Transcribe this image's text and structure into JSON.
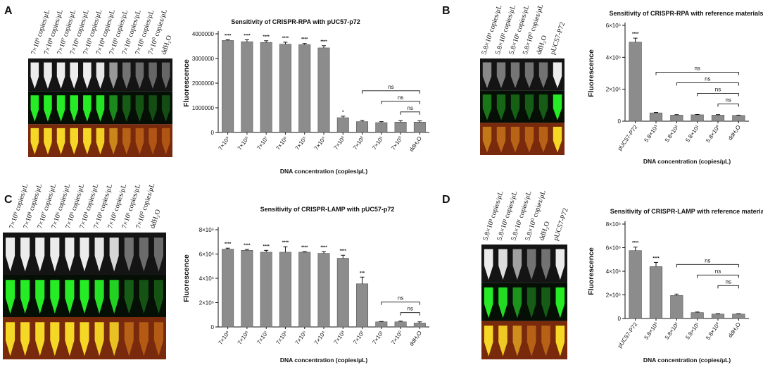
{
  "panels": [
    {
      "label": "A",
      "tube_labels": [
        "7×10⁹ copies/μL",
        "7×10⁸ copies/μL",
        "7×10⁷ copies/μL",
        "7×10⁶ copies/μL",
        "7×10⁵ copies/μL",
        "7×10⁴ copies/μL",
        "7×10³ copies/μL",
        "7×10² copies/μL",
        "7×10¹ copies/μL",
        "7×10⁰ copies/μL",
        "ddH₂O"
      ],
      "tube_brightness": [
        1,
        1,
        1,
        1,
        1,
        0.95,
        0.45,
        0.2,
        0.15,
        0.12,
        0.12
      ]
    },
    {
      "label": "B",
      "tube_labels": [
        "5.8×10³ copies/μL",
        "5.8×10² copies/μL",
        "5.8×10¹ copies/μL",
        "5.8×10⁰ copies/μL",
        "ddH₂O",
        "pUC57-P72"
      ],
      "tube_brightness": [
        0.35,
        0.25,
        0.22,
        0.2,
        0.2,
        1
      ]
    },
    {
      "label": "C",
      "tube_labels": [
        "7×10⁹ copies/μL",
        "7×10⁸ copies/μL",
        "7×10⁷ copies/μL",
        "7×10⁶ copies/μL",
        "7×10⁵ copies/μL",
        "7×10⁴ copies/μL",
        "7×10³ copies/μL",
        "7×10² copies/μL",
        "7×10¹ copies/μL",
        "7×10⁰ copies/μL",
        "ddH₂O"
      ],
      "tube_brightness": [
        1,
        1,
        1,
        1,
        1,
        1,
        0.95,
        0.85,
        0.2,
        0.15,
        0.15
      ]
    },
    {
      "label": "D",
      "tube_labels": [
        "5.8×10³ copies/μL",
        "5.8×10² copies/μL",
        "5.8×10¹ copies/μL",
        "5.8×10⁰ copies/μL",
        "ddH₂O",
        "pUC57-P72"
      ],
      "tube_brightness": [
        1,
        0.9,
        0.5,
        0.2,
        0.2,
        1
      ]
    }
  ],
  "chart_data": [
    {
      "type": "bar",
      "title": "Sensitivity of CRISPR-RPA  with pUC57-p72",
      "ylabel": "Fluorescence",
      "xlabel": "DNA concentration (copies/μL)",
      "categories": [
        "7×10⁹",
        "7×10⁸",
        "7×10⁷",
        "7×10⁶",
        "7×10⁵",
        "7×10⁴",
        "7×10³",
        "7×10²",
        "7×10¹",
        "7×10⁰",
        "ddH₂O"
      ],
      "values": [
        3730000,
        3680000,
        3650000,
        3580000,
        3560000,
        3430000,
        600000,
        440000,
        400000,
        420000,
        420000
      ],
      "errors": [
        30000,
        80000,
        70000,
        80000,
        50000,
        90000,
        60000,
        50000,
        40000,
        60000,
        50000
      ],
      "significance": [
        "****",
        "****",
        "****",
        "****",
        "****",
        "****",
        "*",
        "",
        "",
        "",
        ""
      ],
      "ylim": [
        0,
        4000000
      ],
      "yticks": [
        0,
        1000000,
        2000000,
        3000000,
        4000000
      ],
      "ytick_labels": [
        "0",
        "1000000",
        "2000000",
        "3000000",
        "4000000"
      ],
      "ns_brackets": [
        [
          7,
          10
        ],
        [
          8,
          10
        ],
        [
          9,
          10
        ]
      ],
      "ns_label": "ns"
    },
    {
      "type": "bar",
      "title": "Sensitivity of CRISPR-RPA with reference materials",
      "ylabel": "Fluorescence",
      "xlabel": "DNA concentration (copies/μL)",
      "categories": [
        "pUC57-P72",
        "5.8×10³",
        "5.8×10²",
        "5.8×10¹",
        "5.8×10⁰",
        "ddH₂O"
      ],
      "values": [
        4950000,
        520000,
        380000,
        400000,
        380000,
        360000
      ],
      "errors": [
        250000,
        30000,
        30000,
        20000,
        30000,
        20000
      ],
      "significance": [
        "****",
        "",
        "",
        "",
        "",
        ""
      ],
      "ylim": [
        0,
        6000000
      ],
      "yticks": [
        0,
        2000000,
        4000000,
        6000000
      ],
      "ytick_labels": [
        "0",
        "2×10⁶",
        "4×10⁶",
        "6×10⁶"
      ],
      "ns_brackets": [
        [
          1,
          5
        ],
        [
          2,
          5
        ],
        [
          3,
          5
        ],
        [
          4,
          5
        ]
      ],
      "ns_label": "ns"
    },
    {
      "type": "bar",
      "title": "Sensitivity of CRISPR-LAMP with pUC57-p72",
      "ylabel": "Fluorescence",
      "xlabel": "DNA concentration (copies/μL)",
      "categories": [
        "7×10⁹",
        "7×10⁸",
        "7×10⁷",
        "7×10⁶",
        "7×10⁵",
        "7×10⁴",
        "7×10³",
        "7×10²",
        "7×10¹",
        "7×10⁰",
        "ddH₂O"
      ],
      "values": [
        6400000,
        6300000,
        6150000,
        6150000,
        6150000,
        6050000,
        5650000,
        3550000,
        420000,
        420000,
        320000
      ],
      "errors": [
        80000,
        80000,
        150000,
        450000,
        50000,
        150000,
        250000,
        550000,
        30000,
        60000,
        100000
      ],
      "significance": [
        "****",
        "****",
        "****",
        "****",
        "****",
        "****",
        "****",
        "***",
        "",
        "",
        ""
      ],
      "ylim": [
        0,
        8000000
      ],
      "yticks": [
        0,
        2000000,
        4000000,
        6000000,
        8000000
      ],
      "ytick_labels": [
        "0",
        "2×10⁶",
        "4×10⁶",
        "6×10⁶",
        "8×10⁶"
      ],
      "ns_brackets": [
        [
          8,
          10
        ],
        [
          9,
          10
        ]
      ],
      "ns_label": "ns"
    },
    {
      "type": "bar",
      "title": "Sensitivity of CRISPR-LAMP with reference materials",
      "ylabel": "Fluorescence",
      "xlabel": "DNA concentration (copies/μL)",
      "categories": [
        "pUC57-P72",
        "5.8×10³",
        "5.8×10²",
        "5.8×10¹",
        "5.8×10⁰",
        "ddH₂O"
      ],
      "values": [
        5750000,
        4400000,
        1950000,
        500000,
        380000,
        380000
      ],
      "errors": [
        300000,
        350000,
        120000,
        50000,
        30000,
        30000
      ],
      "significance": [
        "****",
        "****",
        "",
        "",
        "",
        ""
      ],
      "ylim": [
        0,
        8000000
      ],
      "yticks": [
        0,
        2000000,
        4000000,
        6000000,
        8000000
      ],
      "ytick_labels": [
        "0",
        "2×10⁶",
        "4×10⁶",
        "6×10⁶",
        "8×10⁶"
      ],
      "ns_brackets": [
        [
          2,
          5
        ],
        [
          3,
          5
        ],
        [
          4,
          5
        ]
      ],
      "ns_label": "ns"
    }
  ]
}
